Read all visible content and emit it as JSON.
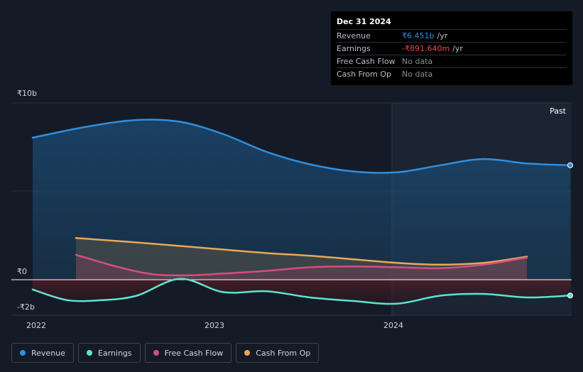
{
  "tooltip": {
    "date": "Dec 31 2024",
    "rows": [
      {
        "label": "Revenue",
        "value": "₹6.451b",
        "unit": "/yr"
      },
      {
        "label": "Earnings",
        "value": "-₹891.640m",
        "unit": "/yr"
      },
      {
        "label": "Free Cash Flow",
        "value": "No data"
      },
      {
        "label": "Cash From Op",
        "value": "No data"
      }
    ]
  },
  "legend": [
    {
      "label": "Revenue",
      "color": "#2f8fe0"
    },
    {
      "label": "Earnings",
      "color": "#5fe3cf"
    },
    {
      "label": "Free Cash Flow",
      "color": "#d64d7f"
    },
    {
      "label": "Cash From Op",
      "color": "#e8a857"
    }
  ],
  "chart_data": {
    "type": "area",
    "past_label": "Past",
    "y_tick_labels": [
      "₹10b",
      "₹0",
      "-₹2b"
    ],
    "x_tick_labels": [
      "2022",
      "2023",
      "2024"
    ],
    "ylim": [
      -2,
      10
    ],
    "xlim": [
      2021.9,
      2025.0
    ],
    "series": [
      {
        "name": "Revenue",
        "color": "#2f8fe0",
        "x": [
          2021.9,
          2022.2,
          2022.5,
          2022.75,
          2023.0,
          2023.25,
          2023.5,
          2023.75,
          2024.0,
          2024.25,
          2024.5,
          2024.75,
          2025.0
        ],
        "y": [
          8.0,
          8.6,
          9.0,
          8.9,
          8.2,
          7.2,
          6.5,
          6.1,
          6.05,
          6.45,
          6.8,
          6.55,
          6.45
        ]
      },
      {
        "name": "Earnings",
        "color": "#5fe3cf",
        "x": [
          2021.9,
          2022.1,
          2022.3,
          2022.5,
          2022.75,
          2023.0,
          2023.25,
          2023.5,
          2023.75,
          2024.0,
          2024.25,
          2024.5,
          2024.75,
          2025.0
        ],
        "y": [
          -0.55,
          -1.15,
          -1.15,
          -0.9,
          0.05,
          -0.7,
          -0.65,
          -1.0,
          -1.2,
          -1.35,
          -0.9,
          -0.8,
          -1.0,
          -0.89
        ]
      },
      {
        "name": "Free Cash Flow",
        "color": "#d64d7f",
        "x": [
          2022.15,
          2022.4,
          2022.6,
          2022.8,
          2023.0,
          2023.25,
          2023.5,
          2023.75,
          2024.0,
          2024.25,
          2024.5,
          2024.75
        ],
        "y": [
          1.4,
          0.7,
          0.3,
          0.25,
          0.35,
          0.5,
          0.7,
          0.75,
          0.7,
          0.65,
          0.85,
          1.25
        ]
      },
      {
        "name": "Cash From Op",
        "color": "#e8a857",
        "x": [
          2022.15,
          2022.5,
          2022.75,
          2023.0,
          2023.25,
          2023.5,
          2023.75,
          2024.0,
          2024.25,
          2024.5,
          2024.75
        ],
        "y": [
          2.35,
          2.1,
          1.9,
          1.7,
          1.5,
          1.35,
          1.15,
          0.95,
          0.85,
          0.95,
          1.3
        ]
      }
    ]
  }
}
